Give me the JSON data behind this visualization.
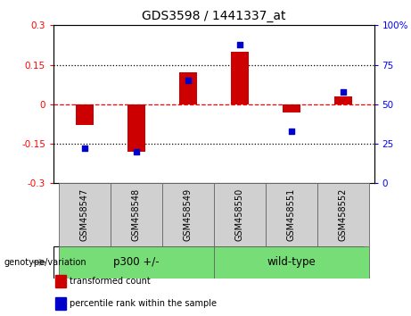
{
  "title": "GDS3598 / 1441337_at",
  "samples": [
    "GSM458547",
    "GSM458548",
    "GSM458549",
    "GSM458550",
    "GSM458551",
    "GSM458552"
  ],
  "red_bars": [
    -0.08,
    -0.18,
    0.12,
    0.2,
    -0.03,
    0.03
  ],
  "blue_dots": [
    22,
    20,
    65,
    88,
    33,
    58
  ],
  "ylim_left": [
    -0.3,
    0.3
  ],
  "ylim_right": [
    0,
    100
  ],
  "yticks_left": [
    -0.3,
    -0.15,
    0,
    0.15,
    0.3
  ],
  "yticks_right": [
    0,
    25,
    50,
    75,
    100
  ],
  "ytick_labels_left": [
    "-0.3",
    "-0.15",
    "0",
    "0.15",
    "0.3"
  ],
  "ytick_labels_right": [
    "0",
    "25",
    "50",
    "75",
    "100%"
  ],
  "hlines": [
    -0.15,
    0,
    0.15
  ],
  "hline_styles": [
    "dotted",
    "dashed",
    "dotted"
  ],
  "hline_colors": [
    "black",
    "red",
    "black"
  ],
  "bar_color": "#CC0000",
  "dot_color": "#0000CC",
  "groups": [
    {
      "label": "p300 +/-",
      "indices": [
        0,
        1,
        2
      ],
      "color": "#77DD77"
    },
    {
      "label": "wild-type",
      "indices": [
        3,
        4,
        5
      ],
      "color": "#77DD77"
    }
  ],
  "group_label": "genotype/variation",
  "legend_items": [
    {
      "label": "transformed count",
      "color": "#CC0000"
    },
    {
      "label": "percentile rank within the sample",
      "color": "#0000CC"
    }
  ],
  "bar_width": 0.35,
  "tick_label_fontsize": 7.5,
  "title_fontsize": 10,
  "group_fontsize": 8.5,
  "sample_fontsize": 7,
  "legend_fontsize": 7,
  "background_plot": "#ffffff",
  "background_label": "#d0d0d0",
  "border_color": "#666666"
}
